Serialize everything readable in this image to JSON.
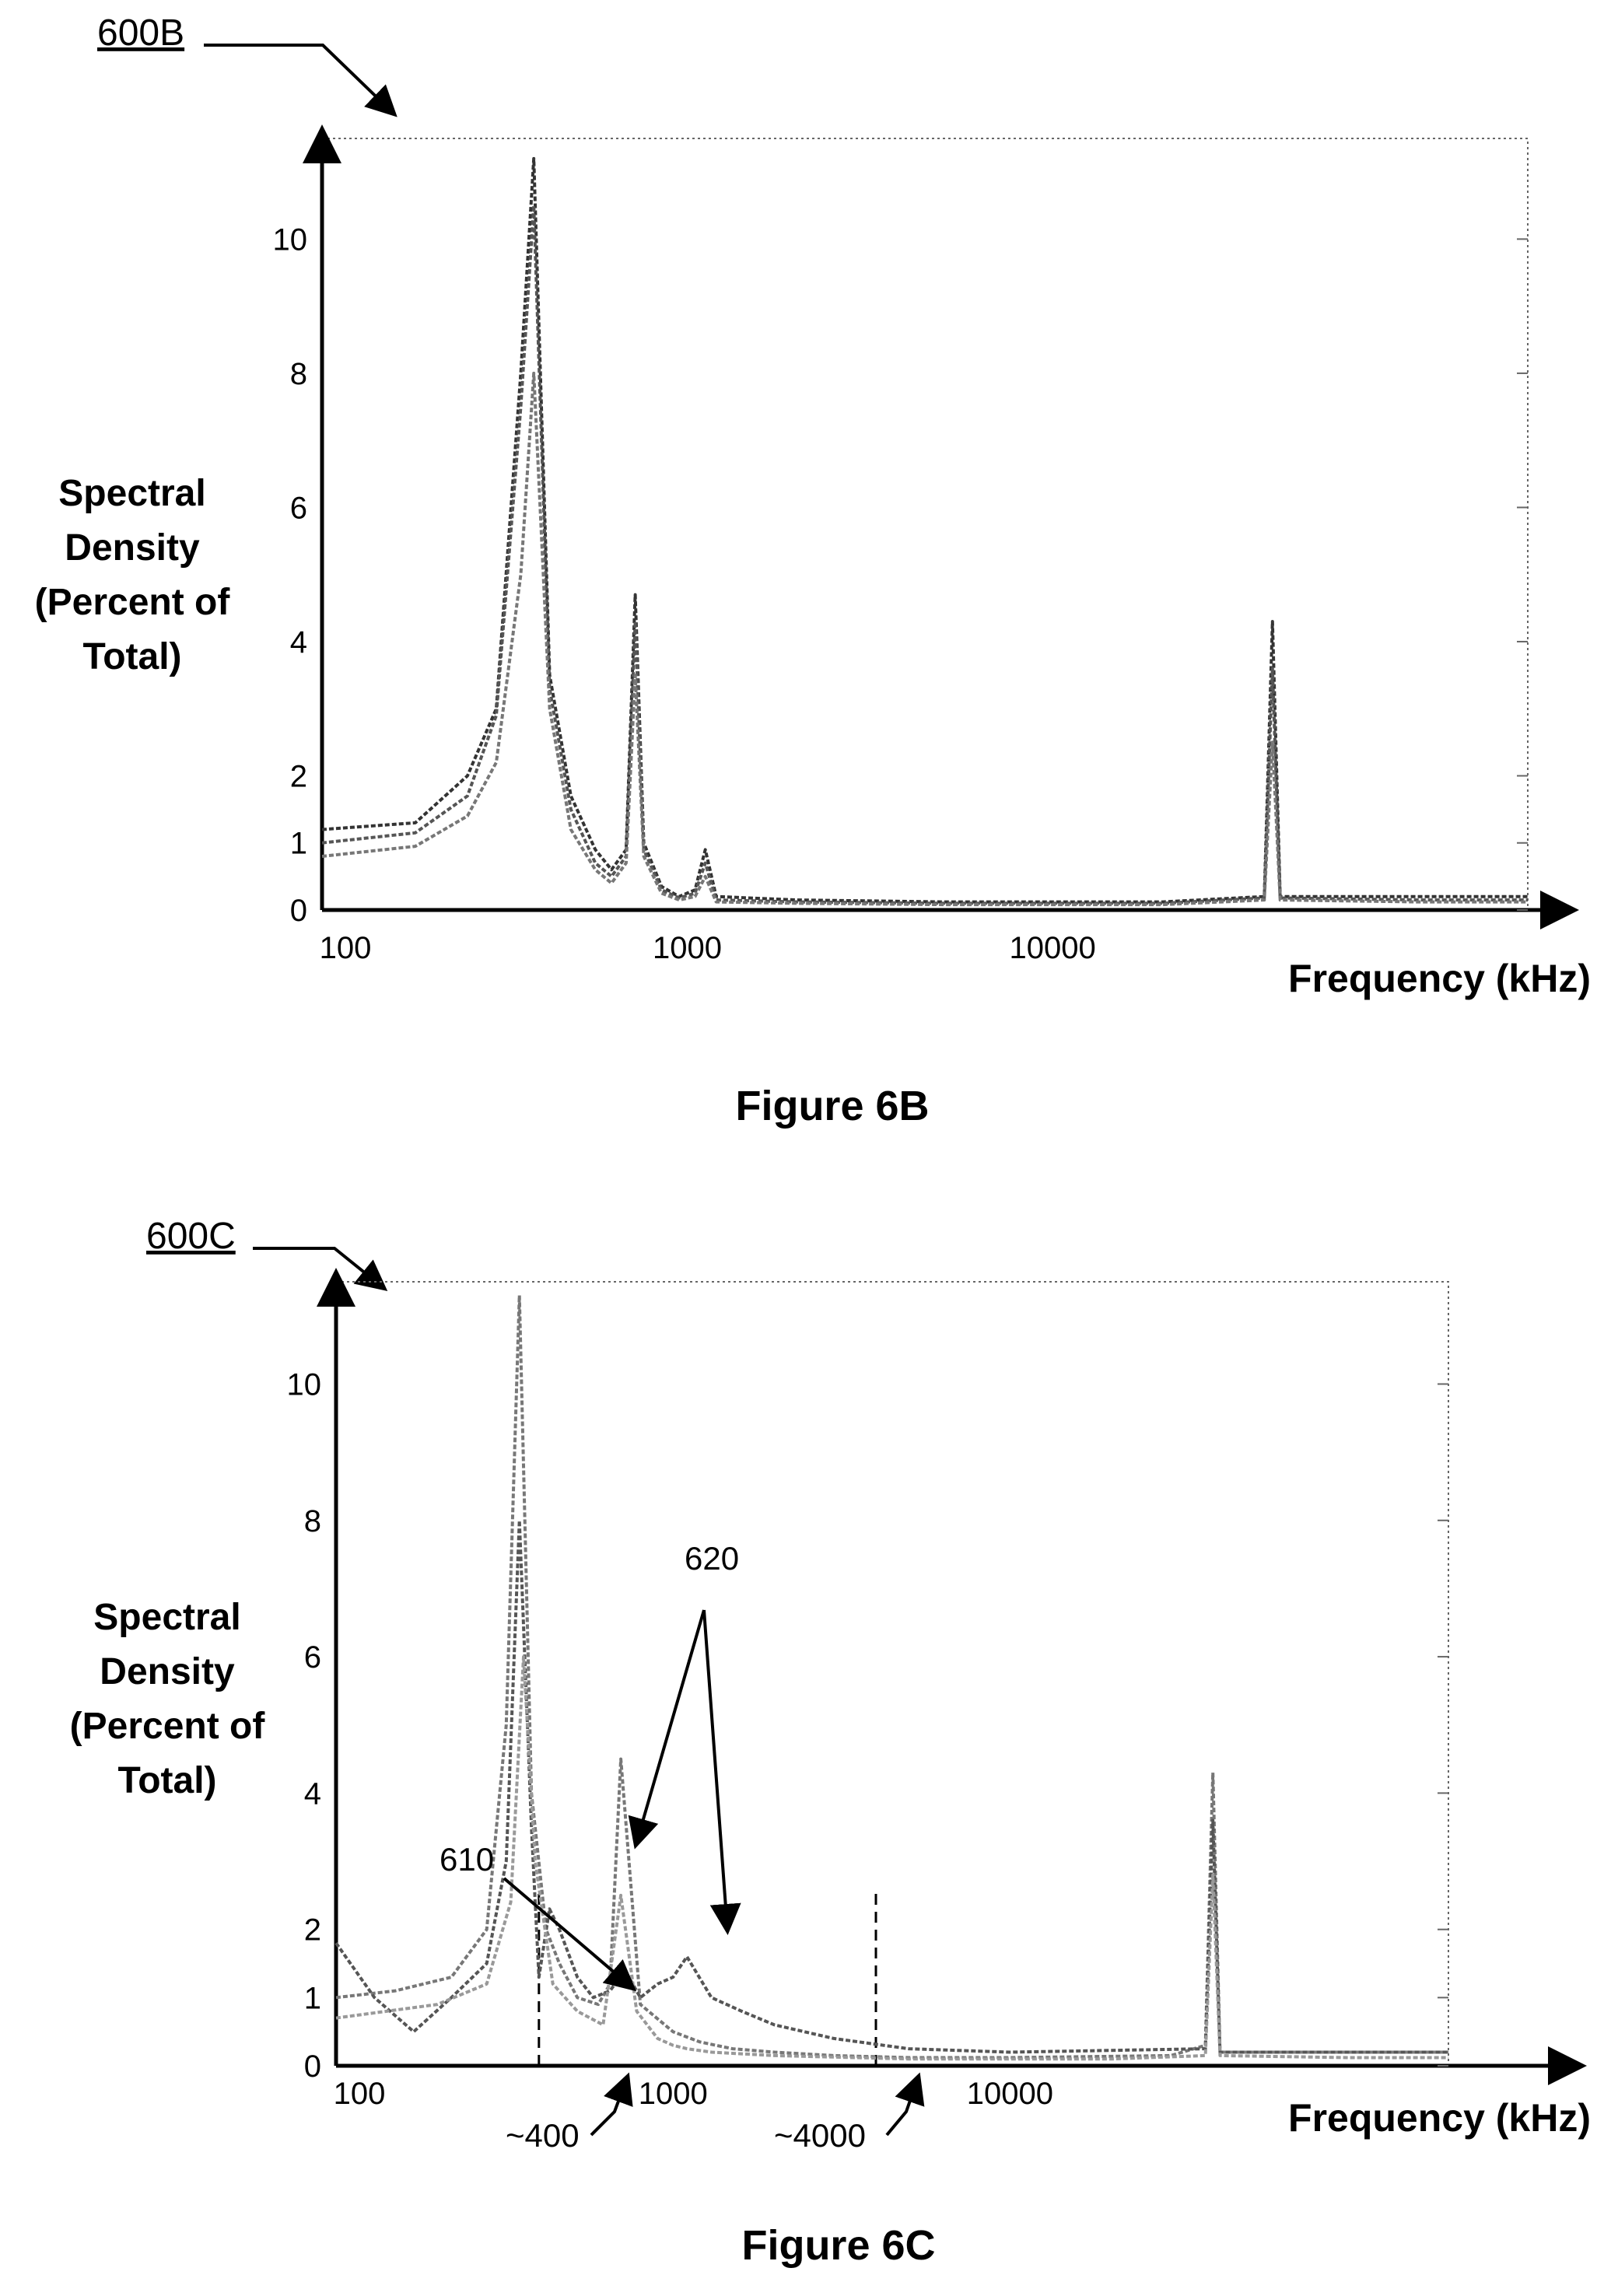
{
  "figures": [
    {
      "ref_label": "600B",
      "caption": "Figure 6B",
      "chart_data": {
        "type": "line",
        "x_scale": "log",
        "xlim": [
          100,
          200000
        ],
        "ylim": [
          0,
          11.5
        ],
        "x_ticks": [
          {
            "value": 100,
            "label": "100"
          },
          {
            "value": 1000,
            "label": "1000"
          },
          {
            "value": 10000,
            "label": "10000"
          }
        ],
        "y_ticks": [
          {
            "value": 0,
            "label": "0"
          },
          {
            "value": 1,
            "label": "1"
          },
          {
            "value": 2,
            "label": "2"
          },
          {
            "value": 4,
            "label": "4"
          },
          {
            "value": 6,
            "label": "6"
          },
          {
            "value": 8,
            "label": "8"
          },
          {
            "value": 10,
            "label": "10"
          }
        ],
        "xlabel": "Frequency (kHz)",
        "ylabel": [
          "Spectral",
          "Density",
          "(Percent of",
          "Total)"
        ],
        "grid": false,
        "series": [
          {
            "color": "#333333",
            "x": [
              100,
              180,
              250,
              300,
              350,
              380,
              420,
              480,
              560,
              620,
              680,
              720,
              760,
              850,
              950,
              1050,
              1120,
              1200,
              2000,
              5000,
              20000,
              38000,
              40000,
              42000,
              100000,
              200000
            ],
            "y": [
              1.2,
              1.3,
              2.0,
              3.0,
              8.0,
              11.2,
              3.5,
              1.7,
              0.9,
              0.6,
              0.9,
              4.7,
              1.0,
              0.35,
              0.2,
              0.3,
              0.9,
              0.2,
              0.15,
              0.12,
              0.12,
              0.2,
              4.3,
              0.2,
              0.2,
              0.2
            ]
          },
          {
            "color": "#555555",
            "x": [
              100,
              180,
              250,
              300,
              350,
              380,
              420,
              480,
              560,
              620,
              680,
              720,
              760,
              850,
              950,
              1050,
              1120,
              1200,
              2000,
              5000,
              20000,
              38000,
              40000,
              42000,
              100000,
              200000
            ],
            "y": [
              1.0,
              1.15,
              1.7,
              2.9,
              7.5,
              10.5,
              3.3,
              1.5,
              0.7,
              0.5,
              0.8,
              4.3,
              0.9,
              0.3,
              0.18,
              0.25,
              0.7,
              0.15,
              0.12,
              0.1,
              0.1,
              0.18,
              3.6,
              0.18,
              0.15,
              0.15
            ]
          },
          {
            "color": "#777777",
            "x": [
              100,
              180,
              250,
              300,
              350,
              380,
              420,
              480,
              560,
              620,
              680,
              720,
              760,
              850,
              950,
              1050,
              1120,
              1200,
              2000,
              5000,
              20000,
              38000,
              40000,
              42000,
              100000,
              200000
            ],
            "y": [
              0.8,
              0.95,
              1.4,
              2.2,
              5.0,
              8.0,
              3.0,
              1.2,
              0.6,
              0.4,
              0.7,
              3.5,
              0.8,
              0.25,
              0.15,
              0.2,
              0.5,
              0.12,
              0.1,
              0.08,
              0.08,
              0.15,
              2.5,
              0.15,
              0.12,
              0.12
            ]
          }
        ]
      }
    },
    {
      "ref_label": "600C",
      "caption": "Figure 6C",
      "annotations": {
        "label_610": "610",
        "label_620": "620",
        "marker_400": "~400",
        "marker_4000": "~4000"
      },
      "chart_data": {
        "type": "line",
        "x_scale": "log",
        "xlim": [
          100,
          200000
        ],
        "ylim": [
          0,
          11.5
        ],
        "x_ticks": [
          {
            "value": 100,
            "label": "100"
          },
          {
            "value": 1000,
            "label": "1000"
          },
          {
            "value": 10000,
            "label": "10000"
          }
        ],
        "y_ticks": [
          {
            "value": 0,
            "label": "0"
          },
          {
            "value": 1,
            "label": "1"
          },
          {
            "value": 2,
            "label": "2"
          },
          {
            "value": 4,
            "label": "4"
          },
          {
            "value": 6,
            "label": "6"
          },
          {
            "value": 8,
            "label": "8"
          },
          {
            "value": 10,
            "label": "10"
          }
        ],
        "xlabel": "Frequency (kHz)",
        "ylabel": [
          "Spectral",
          "Density",
          "(Percent of",
          "Total)"
        ],
        "grid": false,
        "vlines": [
          400,
          4000
        ],
        "series": [
          {
            "color": "#777777",
            "x": [
              100,
              150,
              220,
              280,
              320,
              350,
              380,
              420,
              460,
              520,
              600,
              650,
              700,
              800,
              1000,
              1200,
              1500,
              2000,
              3000,
              5000,
              10000,
              30000,
              38000,
              40000,
              42000,
              100000,
              200000
            ],
            "y": [
              1.0,
              1.1,
              1.3,
              2.0,
              5.0,
              11.3,
              4.0,
              2.0,
              1.5,
              1.0,
              0.9,
              1.2,
              4.5,
              0.9,
              0.5,
              0.35,
              0.25,
              0.2,
              0.15,
              0.12,
              0.12,
              0.15,
              0.3,
              4.3,
              0.2,
              0.2,
              0.2
            ]
          },
          {
            "color": "#555555",
            "x": [
              100,
              130,
              170,
              220,
              280,
              320,
              350,
              380,
              400,
              430,
              460,
              520,
              580,
              650,
              720,
              800,
              900,
              1000,
              1100,
              1300,
              1600,
              2000,
              3000,
              5000,
              10000,
              38000,
              40000,
              42000,
              100000,
              200000
            ],
            "y": [
              1.8,
              1.0,
              0.5,
              1.0,
              1.5,
              3.0,
              8.0,
              3.5,
              1.3,
              2.3,
              2.0,
              1.3,
              1.0,
              1.1,
              1.4,
              1.0,
              1.2,
              1.3,
              1.6,
              1.0,
              0.8,
              0.6,
              0.4,
              0.25,
              0.2,
              0.25,
              3.6,
              0.2,
              0.2,
              0.2
            ]
          },
          {
            "color": "#999999",
            "x": [
              100,
              200,
              280,
              330,
              360,
              390,
              440,
              520,
              620,
              700,
              780,
              900,
              1000,
              1100,
              1300,
              2000,
              5000,
              20000,
              38000,
              40000,
              42000,
              100000,
              200000
            ],
            "y": [
              0.7,
              0.9,
              1.2,
              2.4,
              6.0,
              3.0,
              1.2,
              0.8,
              0.6,
              2.5,
              0.8,
              0.4,
              0.3,
              0.25,
              0.2,
              0.15,
              0.1,
              0.1,
              0.15,
              2.8,
              0.15,
              0.12,
              0.12
            ]
          }
        ]
      }
    }
  ]
}
